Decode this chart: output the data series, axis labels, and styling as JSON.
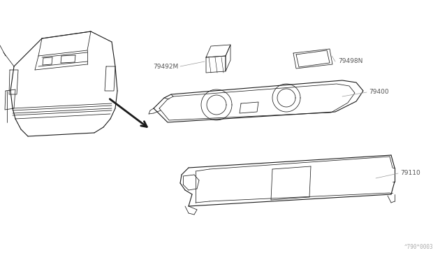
{
  "bg_color": "#ffffff",
  "line_color": "#1a1a1a",
  "label_color": "#555555",
  "label_line_color": "#999999",
  "watermark": "^790*0003",
  "lw_main": 0.8,
  "lw_thin": 0.55,
  "label_fs": 6.5
}
